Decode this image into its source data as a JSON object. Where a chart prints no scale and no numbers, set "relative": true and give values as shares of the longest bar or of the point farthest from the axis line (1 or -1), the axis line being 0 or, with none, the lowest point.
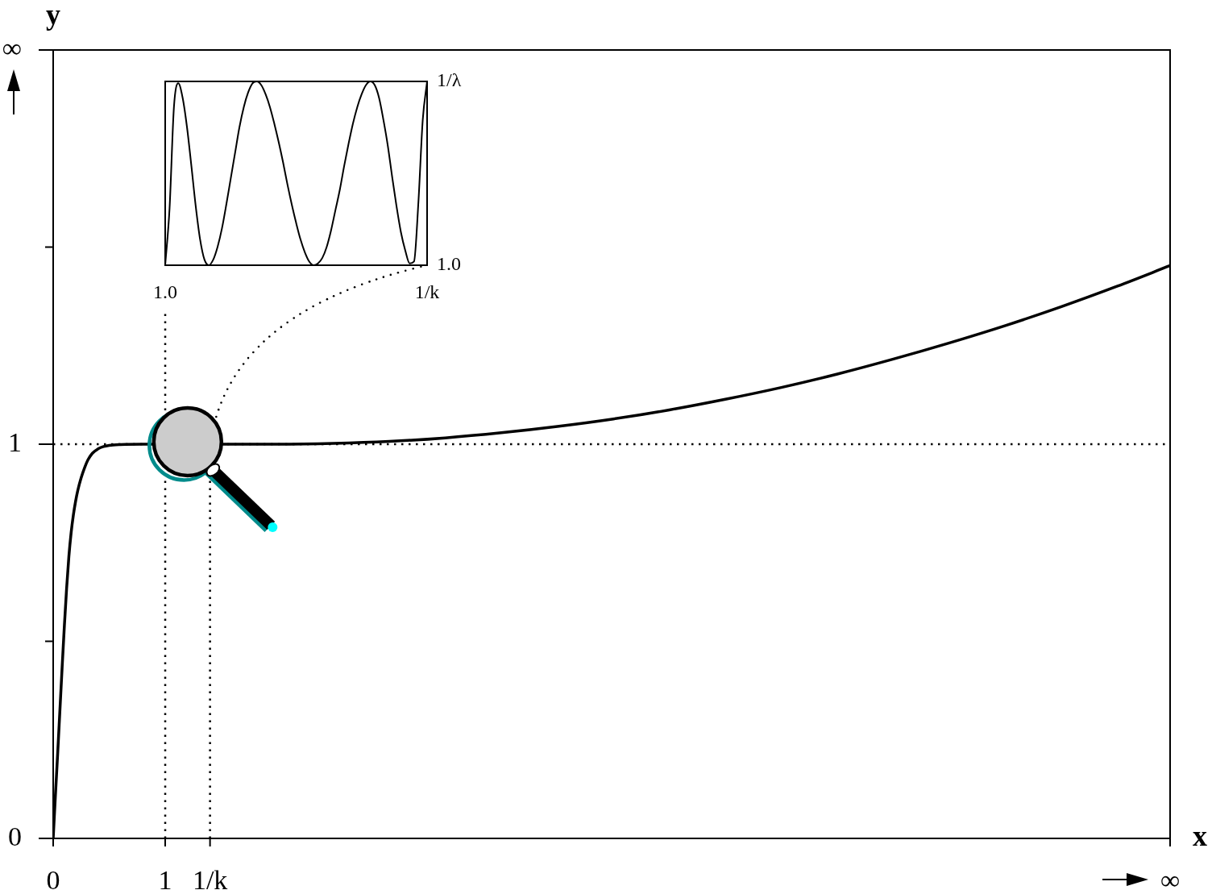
{
  "chart_data": [
    {
      "type": "line",
      "xlabel": "x",
      "ylabel": "y",
      "x": [
        0,
        0.02,
        0.04,
        0.06,
        0.08,
        0.1,
        0.12,
        0.14,
        0.16,
        0.18,
        0.2,
        0.22,
        0.25,
        0.28,
        0.31,
        0.35,
        0.4,
        0.45,
        0.5,
        0.6,
        0.8,
        1.6,
        2,
        2.5,
        3,
        3.5,
        4,
        4.5,
        5,
        5.5,
        6,
        6.5,
        7,
        7.5,
        8,
        8.5,
        9,
        9.5,
        9.97
      ],
      "values": [
        0,
        0.11,
        0.215,
        0.325,
        0.435,
        0.54,
        0.635,
        0.715,
        0.775,
        0.82,
        0.855,
        0.883,
        0.915,
        0.94,
        0.96,
        0.977,
        0.988,
        0.994,
        0.997,
        0.999,
        1,
        1,
        1,
        1.002,
        1.007,
        1.016,
        1.029,
        1.045,
        1.064,
        1.087,
        1.114,
        1.144,
        1.178,
        1.216,
        1.257,
        1.301,
        1.349,
        1.401,
        1.453
      ],
      "color": "#000000",
      "xlim": [
        0,
        9.97
      ],
      "xticks": [
        0,
        1,
        {
          "value": 1.4,
          "label": "1/k"
        },
        {
          "value": 9.97,
          "label": "∞"
        }
      ],
      "ylim": [
        0,
        2
      ],
      "yticks": [
        0,
        {
          "value": 0.5,
          "label": null
        },
        1,
        {
          "value": 1.5,
          "label": null
        },
        {
          "value": 2,
          "label": "∞"
        }
      ],
      "ref_lines": [
        {
          "axis": "y",
          "value": 1,
          "line_style": "dotted"
        },
        {
          "axis": "x",
          "value": 1,
          "line_style": "dotted"
        },
        {
          "axis": "x",
          "value": 1.4,
          "line_style": "dotted"
        }
      ]
    },
    {
      "type": "line",
      "relative": true,
      "categories": [
        "1.0",
        null,
        null,
        null,
        null,
        null,
        null,
        null,
        null,
        null,
        null,
        null,
        null,
        null,
        null,
        null,
        null,
        null,
        null,
        null,
        null,
        null,
        null,
        null,
        null,
        null,
        null,
        null,
        null,
        null,
        null,
        null,
        null,
        null,
        null,
        null,
        null,
        null,
        null,
        null,
        null,
        null,
        null,
        null,
        null,
        null,
        null,
        null,
        null,
        null,
        null,
        null,
        null,
        null,
        null,
        null,
        null,
        null,
        null,
        null,
        "1/k"
      ],
      "values": [
        0,
        0.31,
        0.86,
        0.99,
        0.91,
        0.75,
        0.54,
        0.32,
        0.14,
        0.03,
        0,
        0.03,
        0.1,
        0.2,
        0.33,
        0.47,
        0.61,
        0.75,
        0.86,
        0.94,
        0.99,
        1,
        0.98,
        0.93,
        0.86,
        0.77,
        0.67,
        0.56,
        0.44,
        0.33,
        0.23,
        0.14,
        0.07,
        0.02,
        0,
        0.01,
        0.04,
        0.1,
        0.19,
        0.3,
        0.41,
        0.54,
        0.66,
        0.77,
        0.86,
        0.93,
        0.98,
        1,
        0.98,
        0.91,
        0.79,
        0.65,
        0.48,
        0.32,
        0.18,
        0.08,
        0.01,
        0.02,
        0.34,
        0.79,
        1
      ],
      "color": "#000000",
      "annotations": [
        "1/λ",
        "1.0"
      ]
    }
  ]
}
